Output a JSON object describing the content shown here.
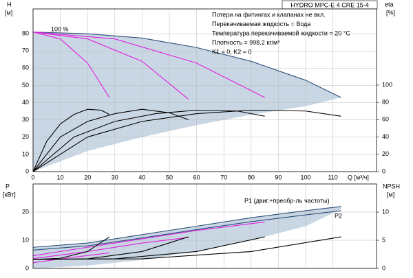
{
  "chart_data": [
    {
      "type": "line",
      "title": "HYDRO MPC-E 4 CRE 15-4",
      "notes": [
        "Потери на фитингах и клапанах не вкл.",
        "Перекачиваемая жидкость = Вода",
        "Температура перекачиваемой жидкости = 20 °C",
        "Плотность = 998.2 кг/м³",
        "K1 = 0, K2 = 0"
      ],
      "annotation": "100 %",
      "y_label": "H",
      "y_unit": "[м]",
      "y2_label": "eta",
      "y2_unit": "[%]",
      "x_label": "Q [м³/ч]",
      "xlim": [
        0,
        126
      ],
      "xticks": [
        0,
        10,
        20,
        30,
        40,
        50,
        60,
        70,
        80,
        90,
        100,
        110
      ],
      "ylim": [
        0,
        94.4
      ],
      "yticks": [
        0,
        10,
        20,
        30,
        40,
        50,
        60,
        70,
        80
      ],
      "y2lim": [
        0,
        188
      ],
      "y2ticks": [
        0,
        20,
        40,
        60,
        80,
        100
      ],
      "grid": true,
      "series": [
        {
          "color": "#c9d6e3",
          "x": [
            0,
            20,
            40,
            60,
            80,
            100,
            113
          ],
          "values": [
            81,
            80,
            77.5,
            72,
            64,
            53,
            43
          ],
          "lower": [
            0,
            12,
            20,
            27,
            33,
            38,
            43
          ]
        },
        {
          "color": "#2b4f7a",
          "x": [
            0,
            20,
            40,
            60,
            80,
            100,
            113
          ],
          "values": [
            81,
            80,
            77.5,
            72,
            64,
            53,
            43
          ]
        },
        {
          "color": "#e020e0",
          "x": [
            0,
            10,
            20,
            28
          ],
          "values": [
            81,
            77,
            63,
            43
          ]
        },
        {
          "color": "#e020e0",
          "x": [
            0,
            20,
            40,
            57
          ],
          "values": [
            81,
            77,
            64,
            42
          ]
        },
        {
          "color": "#e020e0",
          "x": [
            0,
            30,
            60,
            85
          ],
          "values": [
            81,
            77,
            63,
            43
          ]
        },
        {
          "color": "#000000",
          "axis": "y2",
          "x": [
            0,
            5,
            10,
            15,
            20,
            25,
            28
          ],
          "values": [
            0,
            35,
            55,
            66,
            72,
            71,
            66
          ]
        },
        {
          "color": "#000000",
          "axis": "y2",
          "x": [
            0,
            10,
            20,
            30,
            40,
            50,
            57
          ],
          "values": [
            0,
            40,
            58,
            67,
            72,
            68,
            60
          ]
        },
        {
          "color": "#000000",
          "axis": "y2",
          "x": [
            0,
            15,
            30,
            45,
            60,
            75,
            85
          ],
          "values": [
            0,
            40,
            58,
            67,
            71,
            70,
            64
          ]
        },
        {
          "color": "#000000",
          "axis": "y2",
          "x": [
            0,
            20,
            40,
            60,
            80,
            100,
            113
          ],
          "values": [
            0,
            40,
            58,
            67,
            71,
            70,
            64
          ]
        }
      ]
    },
    {
      "type": "line",
      "y_label": "P",
      "y_unit": "[кВт]",
      "y2_label": "NPSH",
      "y2_unit": "[м]",
      "labels": [
        "P1 (двиг.+преобр-ль частоты)",
        "P2"
      ],
      "xlim": [
        0,
        126
      ],
      "ylim": [
        0,
        30
      ],
      "yticks": [
        0,
        10,
        20
      ],
      "y2lim": [
        0,
        15
      ],
      "y2ticks": [
        0,
        5,
        10
      ],
      "grid": true,
      "series": [
        {
          "color": "#c9d6e3",
          "x": [
            0,
            20,
            40,
            60,
            80,
            100,
            113
          ],
          "values": [
            7.5,
            9,
            12,
            15,
            18,
            20.5,
            22
          ],
          "lower": [
            0,
            1,
            3,
            6,
            10,
            15,
            21
          ]
        },
        {
          "color": "#2b4f7a",
          "x": [
            0,
            20,
            40,
            60,
            80,
            100,
            113
          ],
          "values": [
            7.5,
            9,
            12,
            15,
            18,
            20.5,
            22
          ]
        },
        {
          "color": "#2b4f7a",
          "x": [
            0,
            20,
            40,
            60,
            80,
            100,
            113
          ],
          "values": [
            6.5,
            8,
            10.8,
            13.8,
            16.6,
            19,
            20.5
          ]
        },
        {
          "color": "#e020e0",
          "x": [
            0,
            30,
            60,
            85
          ],
          "values": [
            4.5,
            9,
            13.5,
            16.5
          ]
        },
        {
          "color": "#e020e0",
          "x": [
            0,
            20,
            40,
            57
          ],
          "values": [
            3.5,
            6,
            9,
            11
          ]
        },
        {
          "color": "#e020e0",
          "x": [
            0,
            15,
            28
          ],
          "values": [
            2,
            4,
            5.5
          ]
        },
        {
          "color": "#000000",
          "axis": "y2",
          "x": [
            0,
            10,
            20,
            28
          ],
          "values": [
            1.6,
            1.8,
            3,
            5.6
          ]
        },
        {
          "color": "#000000",
          "axis": "y2",
          "x": [
            0,
            20,
            40,
            57
          ],
          "values": [
            1.6,
            1.7,
            3,
            5.6
          ]
        },
        {
          "color": "#000000",
          "axis": "y2",
          "x": [
            0,
            30,
            60,
            85
          ],
          "values": [
            1.6,
            1.7,
            3,
            5.6
          ]
        },
        {
          "color": "#000000",
          "axis": "y2",
          "x": [
            0,
            40,
            80,
            113
          ],
          "values": [
            1.6,
            1.7,
            3,
            5.6
          ]
        }
      ]
    }
  ]
}
